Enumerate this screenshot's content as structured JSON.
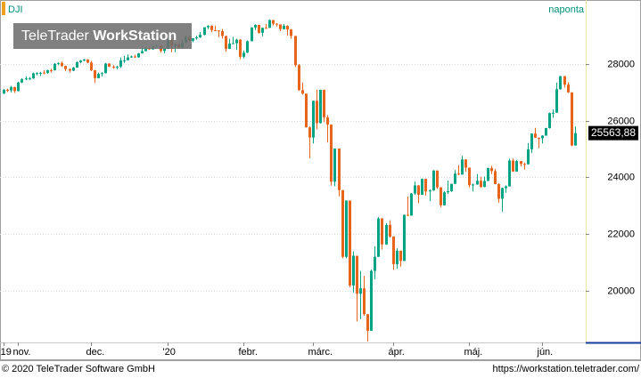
{
  "chart_data": {
    "type": "candlestick",
    "title": "DJI",
    "period": "naponta",
    "watermark": {
      "brand": "TeleTrader",
      "product": "WorkStation"
    },
    "footer_left": "© 2020 TeleTrader Software GmbH",
    "footer_right": "https://workstation.teletrader.com/",
    "up_color": "#00a383",
    "down_color": "#e8641b",
    "grid": true,
    "ylim": [
      18180,
      30259
    ],
    "yticks": [
      20000,
      22000,
      24000,
      26000,
      28000
    ],
    "xlim": [
      -1,
      160
    ],
    "xticks": [
      {
        "value": 0,
        "label": "'19"
      },
      {
        "value": 4,
        "label": "nov."
      },
      {
        "value": 24,
        "label": "dec."
      },
      {
        "value": 45,
        "label": "'20"
      },
      {
        "value": 66,
        "label": "febr."
      },
      {
        "value": 85,
        "label": "márc."
      },
      {
        "value": 107,
        "label": "ápr."
      },
      {
        "value": 128,
        "label": "máj."
      },
      {
        "value": 148,
        "label": "jún."
      }
    ],
    "last_value": 25563.88,
    "last_value_label": "25563,88",
    "candles": [
      [
        26958,
        27120,
        26940,
        27091
      ],
      [
        27091,
        27130,
        27010,
        27071
      ],
      [
        27071,
        27230,
        27000,
        27186
      ],
      [
        27186,
        27200,
        26980,
        27046
      ],
      [
        27046,
        27380,
        27040,
        27347
      ],
      [
        27347,
        27500,
        27330,
        27462
      ],
      [
        27462,
        27560,
        27430,
        27492
      ],
      [
        27480,
        27540,
        27440,
        27492
      ],
      [
        27492,
        27700,
        27480,
        27675
      ],
      [
        27675,
        27710,
        27600,
        27681
      ],
      [
        27681,
        27720,
        27580,
        27691
      ],
      [
        27700,
        27780,
        27640,
        27691
      ],
      [
        27691,
        27800,
        27650,
        27784
      ],
      [
        27784,
        27830,
        27700,
        27782
      ],
      [
        27782,
        28030,
        27770,
        28005
      ],
      [
        28005,
        28060,
        27960,
        28036
      ],
      [
        28036,
        28090,
        27900,
        27934
      ],
      [
        27934,
        27940,
        27750,
        27821
      ],
      [
        27821,
        27850,
        27700,
        27766
      ],
      [
        27766,
        27900,
        27750,
        27876
      ],
      [
        27876,
        28090,
        27870,
        28066
      ],
      [
        28066,
        28140,
        28030,
        28122
      ],
      [
        28122,
        28175,
        28100,
        28164
      ],
      [
        28164,
        28170,
        28030,
        28051
      ],
      [
        28051,
        28110,
        27750,
        27783
      ],
      [
        27783,
        27790,
        27330,
        27503
      ],
      [
        27503,
        27700,
        27500,
        27650
      ],
      [
        27650,
        27710,
        27560,
        27677
      ],
      [
        27677,
        28040,
        27670,
        28015
      ],
      [
        28015,
        28030,
        27900,
        27909
      ],
      [
        27909,
        27960,
        27830,
        27881
      ],
      [
        27881,
        27940,
        27810,
        27911
      ],
      [
        27911,
        28230,
        27860,
        28132
      ],
      [
        28132,
        28290,
        28040,
        28135
      ],
      [
        28135,
        28340,
        28130,
        28235
      ],
      [
        28235,
        28300,
        28220,
        28267
      ],
      [
        28267,
        28330,
        28220,
        28239
      ],
      [
        28239,
        28390,
        28220,
        28377
      ],
      [
        28377,
        28590,
        28370,
        28455
      ],
      [
        28455,
        28580,
        28450,
        28551
      ],
      [
        28551,
        28580,
        28500,
        28516
      ],
      [
        28516,
        28640,
        28510,
        28621
      ],
      [
        28621,
        28700,
        28610,
        28645
      ],
      [
        28645,
        28650,
        28400,
        28462
      ],
      [
        28462,
        28560,
        28380,
        28538
      ],
      [
        28538,
        28880,
        28530,
        28869
      ],
      [
        28869,
        28870,
        28420,
        28634
      ],
      [
        28634,
        28710,
        28420,
        28703
      ],
      [
        28703,
        28710,
        28550,
        28583
      ],
      [
        28583,
        28860,
        28550,
        28745
      ],
      [
        28745,
        29010,
        28740,
        28957
      ],
      [
        28957,
        29010,
        28800,
        28824
      ],
      [
        28824,
        28910,
        28770,
        28907
      ],
      [
        28907,
        29000,
        28860,
        28940
      ],
      [
        28940,
        29130,
        28920,
        29030
      ],
      [
        29030,
        29300,
        29010,
        29297
      ],
      [
        29297,
        29370,
        29230,
        29348
      ],
      [
        29348,
        29370,
        29120,
        29196
      ],
      [
        29196,
        29350,
        29170,
        29186
      ],
      [
        29186,
        29190,
        28950,
        29160
      ],
      [
        29160,
        29240,
        28900,
        28990
      ],
      [
        28990,
        28995,
        28440,
        28535
      ],
      [
        28535,
        28890,
        28530,
        28723
      ],
      [
        28723,
        28960,
        28710,
        28734
      ],
      [
        28734,
        28890,
        28500,
        28859
      ],
      [
        28859,
        28880,
        28170,
        28256
      ],
      [
        28256,
        28480,
        28200,
        28400
      ],
      [
        28400,
        28830,
        28390,
        28807
      ],
      [
        28807,
        29300,
        28800,
        29290
      ],
      [
        29290,
        29400,
        29200,
        29380
      ],
      [
        29380,
        29390,
        29070,
        29103
      ],
      [
        29103,
        29280,
        28980,
        29277
      ],
      [
        29277,
        29420,
        29250,
        29276
      ],
      [
        29276,
        29570,
        29270,
        29551
      ],
      [
        29551,
        29560,
        29360,
        29423
      ],
      [
        29423,
        29440,
        29320,
        29398
      ],
      [
        29398,
        29400,
        29160,
        29232
      ],
      [
        29232,
        29410,
        29220,
        29348
      ],
      [
        29348,
        29370,
        29000,
        29219
      ],
      [
        29219,
        29230,
        28900,
        28992
      ],
      [
        28992,
        28992,
        27900,
        27961
      ],
      [
        27961,
        28000,
        27050,
        27081
      ],
      [
        27081,
        27350,
        26920,
        26957
      ],
      [
        26957,
        26960,
        25760,
        25766
      ],
      [
        25766,
        25800,
        24680,
        25409
      ],
      [
        25409,
        26710,
        25200,
        26703
      ],
      [
        26703,
        27100,
        25700,
        25917
      ],
      [
        25917,
        27100,
        25900,
        27091
      ],
      [
        27091,
        27100,
        25950,
        26121
      ],
      [
        26121,
        26200,
        25230,
        25865
      ],
      [
        25865,
        25865,
        23710,
        23851
      ],
      [
        23851,
        25020,
        23690,
        25018
      ],
      [
        25018,
        25020,
        23330,
        23553
      ],
      [
        23553,
        23550,
        21150,
        21200
      ],
      [
        21200,
        23190,
        21150,
        23186
      ],
      [
        23186,
        23186,
        20120,
        20189
      ],
      [
        20189,
        21390,
        19940,
        21237
      ],
      [
        21237,
        21237,
        18920,
        19899
      ],
      [
        19899,
        20700,
        19000,
        20087
      ],
      [
        20087,
        20530,
        19120,
        19174
      ],
      [
        19174,
        19180,
        18210,
        18592
      ],
      [
        18592,
        20750,
        18590,
        20704
      ],
      [
        20704,
        21570,
        20410,
        21200
      ],
      [
        21200,
        22600,
        21200,
        22552
      ],
      [
        22552,
        22570,
        21460,
        21637
      ],
      [
        21637,
        22390,
        21620,
        22327
      ],
      [
        22327,
        22490,
        21880,
        21917
      ],
      [
        21917,
        21920,
        20740,
        20944
      ],
      [
        20944,
        21500,
        20780,
        21413
      ],
      [
        21413,
        21420,
        20860,
        21053
      ],
      [
        21053,
        22690,
        21050,
        22680
      ],
      [
        22680,
        23330,
        22640,
        22654
      ],
      [
        22654,
        23450,
        22650,
        23434
      ],
      [
        23434,
        23850,
        23390,
        23719
      ],
      [
        23719,
        23730,
        23090,
        23390
      ],
      [
        23390,
        23960,
        23380,
        23950
      ],
      [
        23950,
        23960,
        23360,
        23505
      ],
      [
        23505,
        23580,
        23170,
        23538
      ],
      [
        23538,
        24260,
        23530,
        24242
      ],
      [
        24242,
        24250,
        23600,
        23650
      ],
      [
        23650,
        23660,
        22940,
        23019
      ],
      [
        23019,
        23520,
        23010,
        23475
      ],
      [
        23475,
        23890,
        23420,
        23516
      ],
      [
        23516,
        23780,
        23490,
        23775
      ],
      [
        23775,
        24260,
        23770,
        24134
      ],
      [
        24134,
        24430,
        24080,
        24102
      ],
      [
        24102,
        24760,
        24100,
        24634
      ],
      [
        24634,
        24640,
        24200,
        24346
      ],
      [
        24346,
        24350,
        23650,
        23724
      ],
      [
        23724,
        23790,
        23500,
        23750
      ],
      [
        23750,
        24120,
        23740,
        23883
      ],
      [
        23883,
        24020,
        23630,
        23664
      ],
      [
        23664,
        24030,
        23660,
        23875
      ],
      [
        23875,
        24340,
        23870,
        24331
      ],
      [
        24331,
        24410,
        24120,
        24222
      ],
      [
        24222,
        24300,
        23760,
        23764
      ],
      [
        23764,
        23800,
        23110,
        23248
      ],
      [
        23248,
        23640,
        22790,
        23625
      ],
      [
        23625,
        23720,
        23460,
        23685
      ],
      [
        23685,
        24660,
        23680,
        24597
      ],
      [
        24597,
        24670,
        24200,
        24207
      ],
      [
        24207,
        24620,
        24200,
        24576
      ],
      [
        24576,
        24580,
        24390,
        24474
      ],
      [
        24474,
        24520,
        24280,
        24465
      ],
      [
        24465,
        25210,
        24460,
        24995
      ],
      [
        24995,
        25550,
        24860,
        25548
      ],
      [
        25548,
        25750,
        25390,
        25401
      ],
      [
        25401,
        25410,
        25030,
        25383
      ],
      [
        25383,
        25490,
        25200,
        25475
      ],
      [
        25475,
        25750,
        25470,
        25742
      ],
      [
        25742,
        26290,
        25720,
        26270
      ],
      [
        26270,
        26400,
        26100,
        26282
      ],
      [
        26282,
        27340,
        26280,
        27111
      ],
      [
        27111,
        27580,
        27100,
        27572
      ],
      [
        27572,
        27580,
        27170,
        27273
      ],
      [
        27273,
        27360,
        26980,
        27000
      ],
      [
        27000,
        27000,
        25100,
        25128
      ],
      [
        25128,
        25800,
        25120,
        25563.88
      ]
    ]
  }
}
